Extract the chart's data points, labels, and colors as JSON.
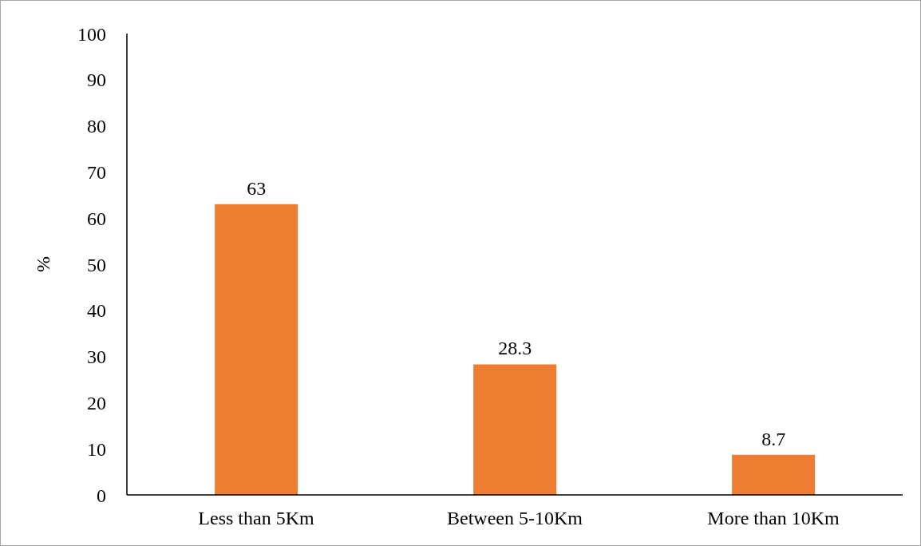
{
  "chart_data": {
    "type": "bar",
    "ylabel": "%",
    "categories": [
      "Less than 5Km",
      "Between 5-10Km",
      "More than 10Km"
    ],
    "values": [
      63,
      28.3,
      8.7
    ],
    "color": "#ed7d31",
    "ylim": [
      0,
      100
    ],
    "yticks": [
      0,
      10,
      20,
      30,
      40,
      50,
      60,
      70,
      80,
      90,
      100
    ],
    "grid": false,
    "data_labels": true
  }
}
